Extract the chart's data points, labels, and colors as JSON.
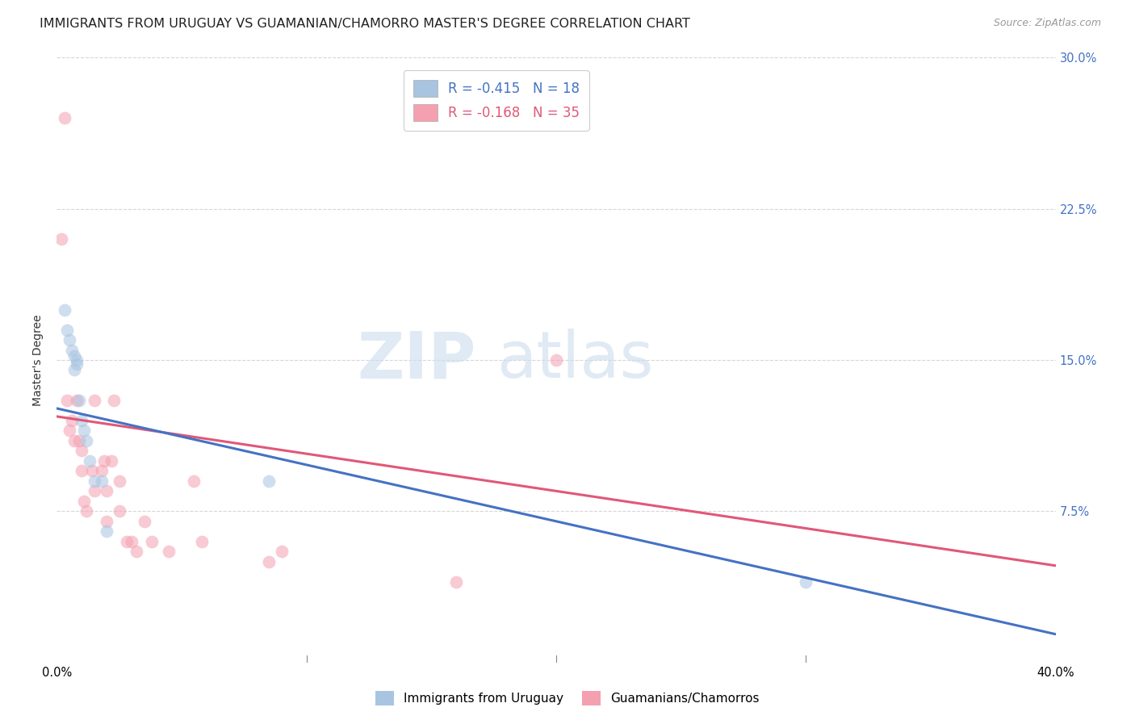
{
  "title": "IMMIGRANTS FROM URUGUAY VS GUAMANIAN/CHAMORRO MASTER'S DEGREE CORRELATION CHART",
  "source": "Source: ZipAtlas.com",
  "ylabel": "Master's Degree",
  "xmin": 0.0,
  "xmax": 0.4,
  "ymin": 0.0,
  "ymax": 0.3,
  "yticks": [
    0.075,
    0.15,
    0.225,
    0.3
  ],
  "ytick_labels": [
    "7.5%",
    "15.0%",
    "22.5%",
    "30.0%"
  ],
  "legend1_label": "R = -0.415   N = 18",
  "legend2_label": "R = -0.168   N = 35",
  "blue_color": "#a8c4e0",
  "pink_color": "#f4a0b0",
  "blue_line_color": "#4472c4",
  "pink_line_color": "#e05878",
  "grid_color": "#cccccc",
  "bg_color": "#ffffff",
  "blue_scatter_x": [
    0.003,
    0.004,
    0.005,
    0.006,
    0.007,
    0.007,
    0.008,
    0.008,
    0.009,
    0.01,
    0.011,
    0.012,
    0.013,
    0.015,
    0.018,
    0.02,
    0.085,
    0.3
  ],
  "blue_scatter_y": [
    0.175,
    0.165,
    0.16,
    0.155,
    0.152,
    0.145,
    0.15,
    0.148,
    0.13,
    0.12,
    0.115,
    0.11,
    0.1,
    0.09,
    0.09,
    0.065,
    0.09,
    0.04
  ],
  "pink_scatter_x": [
    0.002,
    0.003,
    0.004,
    0.005,
    0.006,
    0.007,
    0.008,
    0.009,
    0.01,
    0.01,
    0.011,
    0.012,
    0.014,
    0.015,
    0.015,
    0.018,
    0.019,
    0.02,
    0.02,
    0.022,
    0.023,
    0.025,
    0.025,
    0.028,
    0.03,
    0.032,
    0.035,
    0.038,
    0.045,
    0.055,
    0.058,
    0.085,
    0.09,
    0.16,
    0.2
  ],
  "pink_scatter_y": [
    0.21,
    0.27,
    0.13,
    0.115,
    0.12,
    0.11,
    0.13,
    0.11,
    0.105,
    0.095,
    0.08,
    0.075,
    0.095,
    0.085,
    0.13,
    0.095,
    0.1,
    0.085,
    0.07,
    0.1,
    0.13,
    0.09,
    0.075,
    0.06,
    0.06,
    0.055,
    0.07,
    0.06,
    0.055,
    0.09,
    0.06,
    0.05,
    0.055,
    0.04,
    0.15
  ],
  "blue_line_y_start": 0.126,
  "blue_line_y_end": 0.014,
  "pink_line_y_start": 0.122,
  "pink_line_y_end": 0.048,
  "scatter_size": 130,
  "scatter_alpha": 0.55,
  "title_fontsize": 11.5,
  "axis_label_fontsize": 10,
  "tick_fontsize": 10.5,
  "legend_fontsize": 12
}
